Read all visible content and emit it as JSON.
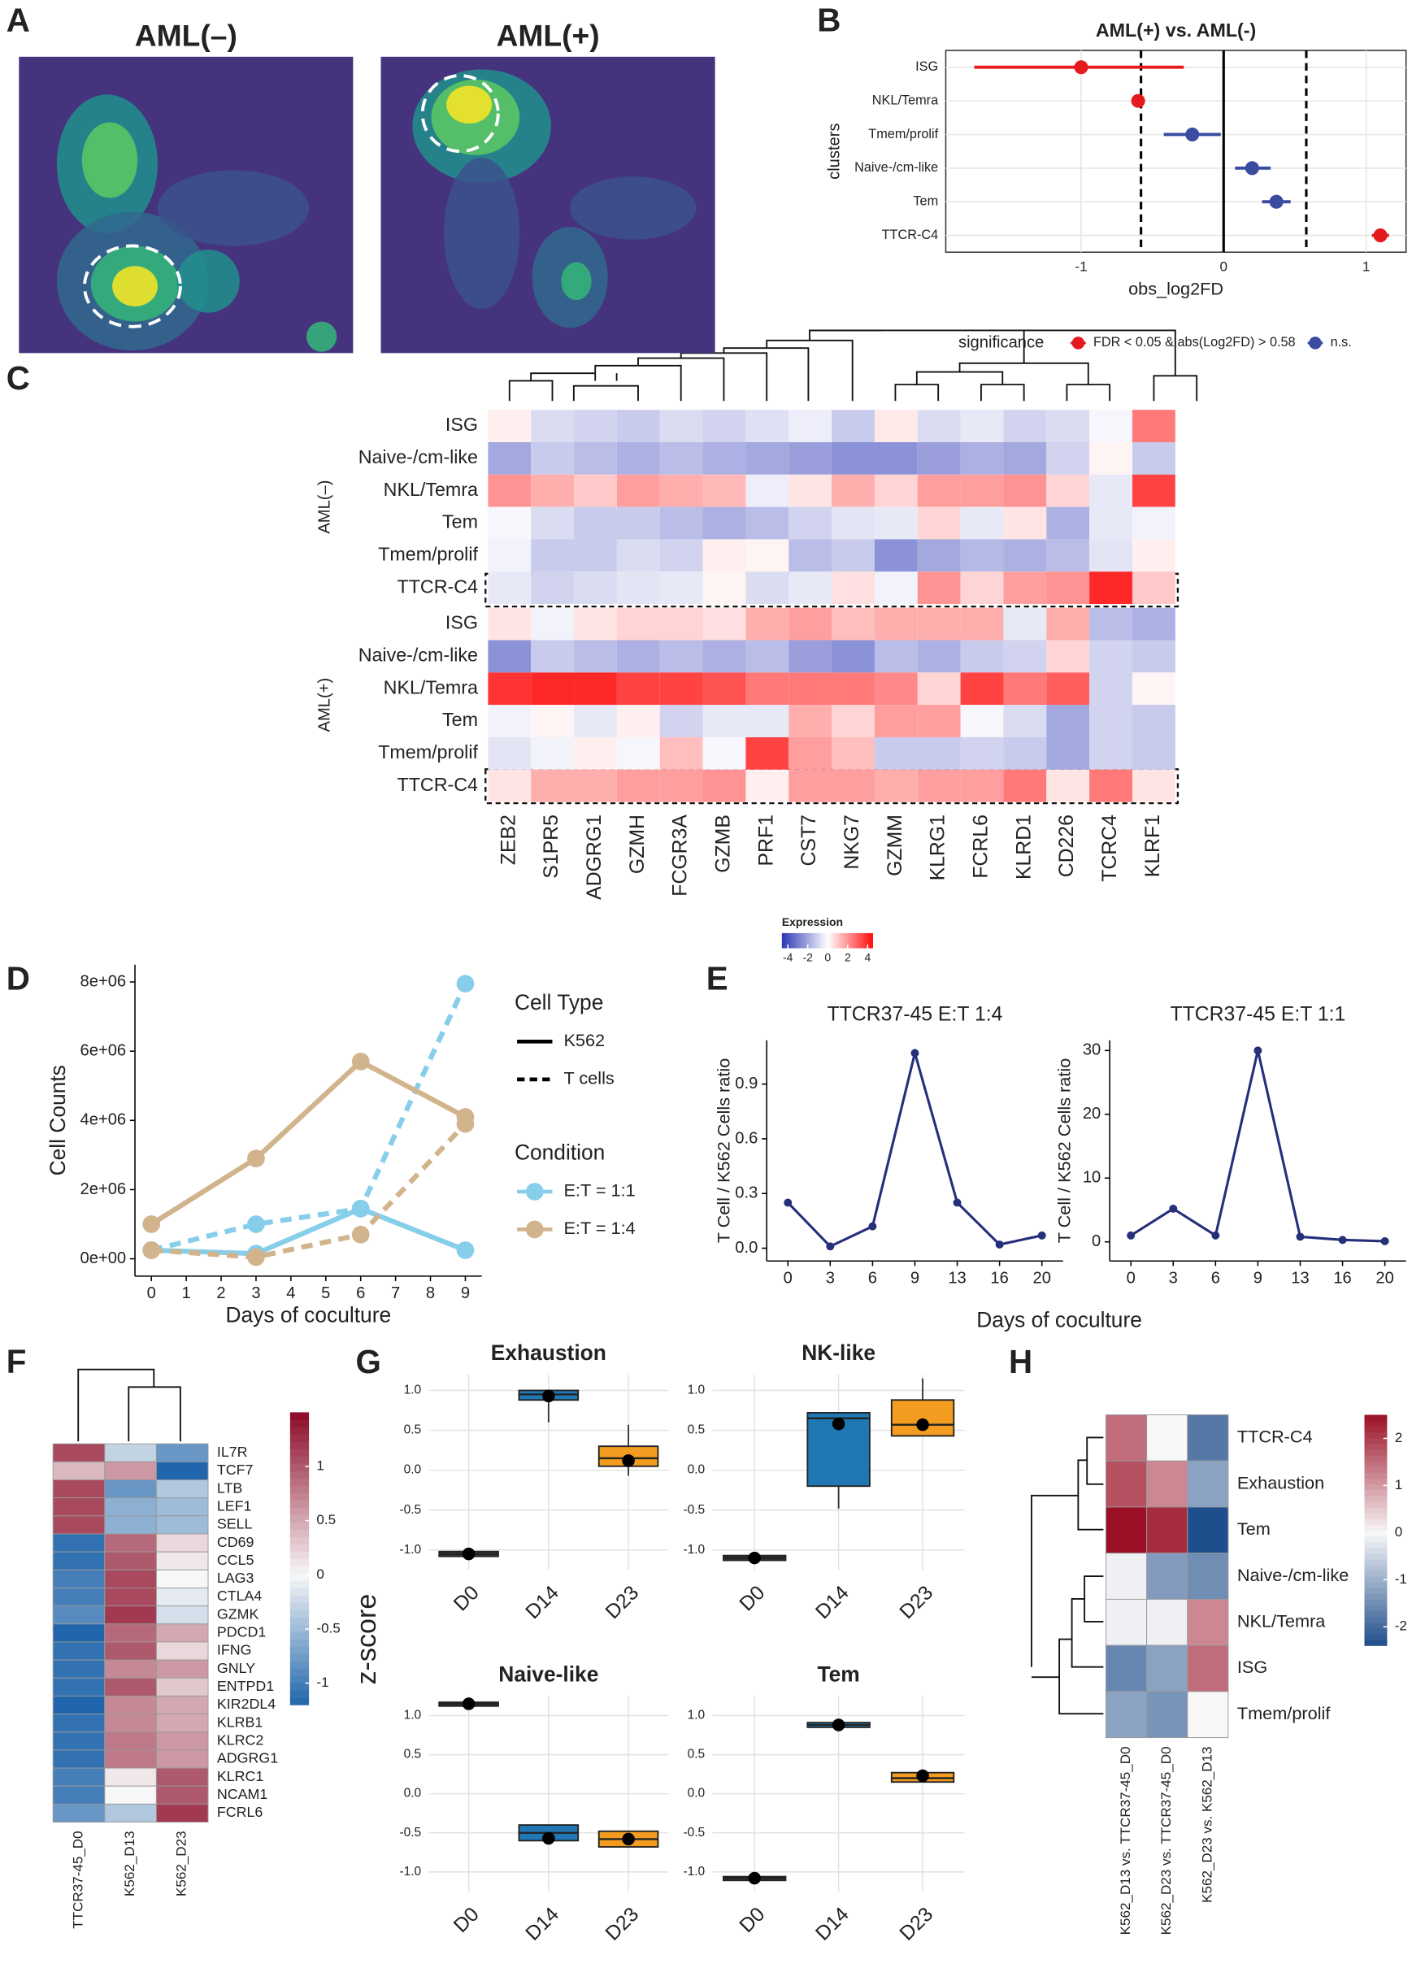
{
  "panel_labels": [
    "A",
    "B",
    "C",
    "D",
    "E",
    "F",
    "G",
    "H"
  ],
  "chart_data": [
    {
      "type": "density",
      "title": "AML(–)"
    },
    {
      "type": "density",
      "title": "AML(+)"
    },
    {
      "type": "forest",
      "title": "AML(+) vs. AML(-)",
      "xlabel": "obs_log2FD",
      "ylabel": "clusters",
      "categories": [
        "ISG",
        "NKL/Temra",
        "Tmem/prolif",
        "Naive-/cm-like",
        "Tem",
        "TTCR-C4"
      ],
      "values": [
        -1.0,
        -0.6,
        -0.22,
        0.2,
        0.37,
        1.1
      ],
      "lower": [
        -1.75,
        -0.63,
        -0.42,
        0.08,
        0.27,
        1.04
      ],
      "upper": [
        -0.28,
        -0.57,
        -0.02,
        0.33,
        0.47,
        1.16
      ],
      "groups": [
        0,
        0,
        1,
        1,
        1,
        0
      ],
      "legend_title": "significance",
      "legend": [
        {
          "name": "FDR < 0.05 & abs(Log2FD) > 0.58",
          "color": "#e41a1c"
        },
        {
          "name": "n.s.",
          "color": "#3a4ba0"
        }
      ],
      "thresholds": [
        -0.58,
        0.58
      ],
      "xlim": [
        -1.95,
        1.28
      ],
      "xticks": [
        -1,
        0,
        1
      ],
      "grid": true
    },
    {
      "type": "heatmap",
      "columns": [
        "ZEB2",
        "S1PR5",
        "ADGRG1",
        "GZMH",
        "FCGR3A",
        "GZMB",
        "PRF1",
        "CST7",
        "NKG7",
        "GZMM",
        "KLRG1",
        "FCRL6",
        "KLRD1",
        "CD226",
        "TCRC4",
        "KLRF1"
      ],
      "row_groups": [
        {
          "name": "AML(–)",
          "rows": [
            "ISG",
            "Naive-/cm-like",
            "NKL/Temra",
            "Tem",
            "Tmem/prolif",
            "TTCR-C4"
          ],
          "values": [
            [
              0.3,
              -0.8,
              -1,
              -1.2,
              -0.8,
              -1,
              -0.7,
              -0.4,
              -1.2,
              0.4,
              -0.8,
              -0.5,
              -1,
              -0.8,
              -0.2,
              2.5
            ],
            [
              -2,
              -1.2,
              -1.5,
              -1.8,
              -1.5,
              -1.8,
              -2,
              -2.2,
              -2.5,
              -2.5,
              -2.2,
              -1.8,
              -2,
              -1,
              0.2,
              -1.2
            ],
            [
              2,
              1.5,
              1,
              1.8,
              1.5,
              1.3,
              -0.4,
              0.5,
              1.5,
              0.8,
              1.8,
              1.8,
              2,
              0.8,
              -0.5,
              3.5
            ],
            [
              -0.2,
              -0.8,
              -1.2,
              -1.2,
              -1.5,
              -1.8,
              -1.5,
              -1,
              -0.6,
              -0.5,
              0.8,
              -0.5,
              0.5,
              -1.8,
              -0.5,
              -0.3
            ],
            [
              -0.3,
              -1.2,
              -1.2,
              -0.8,
              -1,
              0.3,
              0.2,
              -1.5,
              -1.2,
              -2.5,
              -2,
              -1.6,
              -1.8,
              -1.5,
              -0.6,
              0.3
            ],
            [
              -0.5,
              -1,
              -0.8,
              -0.6,
              -0.5,
              0.2,
              -0.8,
              -0.5,
              0.6,
              -0.3,
              2,
              0.8,
              1.8,
              2,
              4,
              1
            ]
          ]
        },
        {
          "name": "AML(+)",
          "rows": [
            "ISG",
            "Naive-/cm-like",
            "NKL/Temra",
            "Tem",
            "Tmem/prolif",
            "TTCR-C4"
          ],
          "values": [
            [
              0.5,
              -0.3,
              0.5,
              0.8,
              0.8,
              0.6,
              1.5,
              1.8,
              1.2,
              1.5,
              1.5,
              1.5,
              -0.5,
              1.5,
              -1.5,
              -1.8
            ],
            [
              -2.5,
              -1.2,
              -1.5,
              -1.8,
              -1.5,
              -1.8,
              -1.5,
              -2.2,
              -2.5,
              -1.5,
              -1.8,
              -1.2,
              -1,
              0.8,
              -1,
              -1.2
            ],
            [
              3.8,
              4,
              4,
              3.5,
              3.5,
              3.2,
              2.5,
              2.5,
              2.5,
              2.2,
              0.8,
              3.5,
              2.5,
              3,
              -1,
              0.2
            ],
            [
              -0.3,
              0.2,
              -0.5,
              0.3,
              -1,
              -0.5,
              -0.5,
              1.5,
              0.8,
              1.8,
              1.8,
              -0.2,
              -0.8,
              -2,
              -1,
              -1.2
            ],
            [
              -0.6,
              -0.3,
              0.3,
              -0.2,
              1.2,
              -0.2,
              3.5,
              1.8,
              1.2,
              -1.2,
              -1.2,
              -1,
              -1.2,
              -2,
              -1,
              -1.2
            ],
            [
              0.5,
              1.5,
              1.5,
              1.8,
              1.8,
              2,
              0.3,
              1.8,
              1.8,
              1.5,
              1.8,
              1.8,
              2.5,
              0.5,
              2.5,
              0.5
            ]
          ]
        }
      ],
      "colorbar_title": "Expression",
      "colors": [
        "#2b36b5",
        "#ffffff",
        "#ff0d0d"
      ],
      "clim": [
        -4.6,
        4.5
      ],
      "colorbar_ticks": [
        -4,
        -2,
        0,
        2,
        4
      ]
    },
    {
      "type": "line",
      "xlabel": "Days of coculture",
      "ylabel": "Cell Counts",
      "x": [
        0,
        3,
        6,
        9
      ],
      "xlim": [
        -0.47,
        9.47
      ],
      "xticks": [
        0,
        1,
        2,
        3,
        4,
        5,
        6,
        7,
        8,
        9
      ],
      "ylim": [
        -500000,
        8500000
      ],
      "yticks": [
        {
          "value": 0,
          "label": "0e+00"
        },
        {
          "value": 2000000,
          "label": "2e+06"
        },
        {
          "value": 4000000,
          "label": "4e+06"
        },
        {
          "value": 6000000,
          "label": "6e+06"
        },
        {
          "value": 8000000,
          "label": "8e+06"
        }
      ],
      "legend_linetype": {
        "title": "Cell Type",
        "items": [
          {
            "name": "K562",
            "dash": false
          },
          {
            "name": "T cells",
            "dash": true
          }
        ]
      },
      "legend_color": {
        "title": "Condition",
        "items": [
          {
            "name": "E:T = 1:1",
            "color": "#87ceeb"
          },
          {
            "name": "E:T = 1:4",
            "color": "#d2b48c"
          }
        ]
      },
      "series": [
        {
          "linetype": 0,
          "condition": 0,
          "values": [
            250000,
            150000,
            1450000,
            250000
          ]
        },
        {
          "linetype": 1,
          "condition": 0,
          "values": [
            250000,
            1000000,
            1450000,
            7950000
          ]
        },
        {
          "linetype": 0,
          "condition": 1,
          "values": [
            1000000,
            2900000,
            5700000,
            4100000
          ]
        },
        {
          "linetype": 1,
          "condition": 1,
          "values": [
            250000,
            50000,
            700000,
            3900000
          ]
        }
      ]
    },
    {
      "type": "line",
      "title": "TTCR37-45 E:T 1:4",
      "ylabel": "T Cell / K562 Cells ratio",
      "xlabel": "Days of coculture",
      "categories": [
        "0",
        "3",
        "6",
        "9",
        "13",
        "16",
        "20"
      ],
      "values": [
        0.25,
        0.01,
        0.12,
        1.07,
        0.25,
        0.02,
        0.07
      ],
      "color": "#252f7a",
      "ylim": [
        -0.07,
        1.14
      ],
      "yticks": [
        {
          "value": 0,
          "label": "0.0"
        },
        0.3,
        0.6,
        0.9
      ]
    },
    {
      "type": "line",
      "title": "TTCR37-45 E:T 1:1",
      "ylabel": "T Cell / K562 Cells ratio",
      "categories": [
        "0",
        "3",
        "6",
        "9",
        "13",
        "16",
        "20"
      ],
      "values": [
        1,
        5.2,
        1,
        30,
        0.8,
        0.3,
        0.1
      ],
      "color": "#252f7a",
      "ylim": [
        -3,
        31.6
      ],
      "yticks": [
        0,
        10,
        20,
        30
      ]
    },
    {
      "type": "heatmap",
      "columns": [
        "TTCR37-45_D0",
        "K562_D13",
        "K562_D23"
      ],
      "rows": [
        "IL7R",
        "TCF7",
        "LTB",
        "LEF1",
        "SELL",
        "CD69",
        "CCL5",
        "LAG3",
        "CTLA4",
        "GZMK",
        "PDCD1",
        "IFNG",
        "GNLY",
        "ENTPD1",
        "KIR2DL4",
        "KLRB1",
        "KLRC2",
        "ADGRG1",
        "KLRC1",
        "NCAM1",
        "FCRL6"
      ],
      "values": [
        [
          1.1,
          -0.3,
          -0.8
        ],
        [
          0.4,
          0.6,
          -1.2
        ],
        [
          1.1,
          -0.8,
          -0.4
        ],
        [
          1.1,
          -0.6,
          -0.5
        ],
        [
          1.1,
          -0.6,
          -0.5
        ],
        [
          -1.1,
          0.9,
          0.2
        ],
        [
          -1.1,
          1.0,
          0.1
        ],
        [
          -1.0,
          1.1,
          0.0
        ],
        [
          -1.0,
          1.1,
          -0.1
        ],
        [
          -0.9,
          1.2,
          -0.2
        ],
        [
          -1.2,
          0.9,
          0.5
        ],
        [
          -1.1,
          1.0,
          0.2
        ],
        [
          -1.1,
          0.7,
          0.6
        ],
        [
          -1.1,
          1.0,
          0.3
        ],
        [
          -1.2,
          0.7,
          0.5
        ],
        [
          -1.1,
          0.7,
          0.5
        ],
        [
          -1.1,
          0.8,
          0.6
        ],
        [
          -1.1,
          0.8,
          0.6
        ],
        [
          -1.0,
          0.1,
          1.0
        ],
        [
          -1.0,
          0.0,
          1.0
        ],
        [
          -0.8,
          -0.4,
          1.2
        ]
      ],
      "colors": [
        "#2166ac",
        "#f7f7f7",
        "#8b0a26"
      ],
      "clim": [
        -1.2,
        1.5
      ],
      "colorbar_ticks": [
        -1,
        -0.5,
        0,
        0.5,
        1
      ]
    },
    {
      "type": "box",
      "title": "Exhaustion",
      "ylabel": "z-score",
      "categories": [
        "D0",
        "D14",
        "D23"
      ],
      "colors": [
        "#3a3a3a",
        "#1f78b4",
        "#f39c1f"
      ],
      "ylim": [
        -1.25,
        1.2
      ],
      "yticks": [
        {
          "value": -1,
          "label": "-1.0"
        },
        -0.5,
        {
          "value": 0,
          "label": "0.0"
        },
        0.5,
        {
          "value": 1,
          "label": "1.0"
        }
      ],
      "boxes": [
        {
          "min": -1.08,
          "q1": -1.08,
          "median": -1.05,
          "q3": -1.02,
          "max": -1.02,
          "mean": -1.05
        },
        {
          "min": 0.6,
          "q1": 0.88,
          "median": 0.95,
          "q3": 1.0,
          "max": 1.0,
          "mean": 0.93
        },
        {
          "min": -0.07,
          "q1": 0.05,
          "median": 0.15,
          "q3": 0.3,
          "max": 0.57,
          "mean": 0.12
        }
      ]
    },
    {
      "type": "box",
      "title": "NK-like",
      "categories": [
        "D0",
        "D14",
        "D23"
      ],
      "colors": [
        "#3a3a3a",
        "#1f78b4",
        "#f39c1f"
      ],
      "ylim": [
        -1.25,
        1.2
      ],
      "yticks": [
        {
          "value": -1,
          "label": "-1.0"
        },
        -0.5,
        {
          "value": 0,
          "label": "0.0"
        },
        0.5,
        {
          "value": 1,
          "label": "1.0"
        }
      ],
      "boxes": [
        {
          "min": -1.13,
          "q1": -1.13,
          "median": -1.1,
          "q3": -1.07,
          "max": -1.07,
          "mean": -1.1
        },
        {
          "min": -0.48,
          "q1": -0.2,
          "median": 0.65,
          "q3": 0.72,
          "max": 0.73,
          "mean": 0.58
        },
        {
          "min": 0.43,
          "q1": 0.43,
          "median": 0.57,
          "q3": 0.88,
          "max": 1.15,
          "mean": 0.57
        }
      ]
    },
    {
      "type": "box",
      "title": "Naive-like",
      "categories": [
        "D0",
        "D14",
        "D23"
      ],
      "colors": [
        "#3a3a3a",
        "#1f78b4",
        "#f39c1f"
      ],
      "ylim": [
        -1.25,
        1.25
      ],
      "yticks": [
        {
          "value": -1,
          "label": "-1.0"
        },
        -0.5,
        {
          "value": 0,
          "label": "0.0"
        },
        0.5,
        {
          "value": 1,
          "label": "1.0"
        }
      ],
      "boxes": [
        {
          "min": 1.13,
          "q1": 1.13,
          "median": 1.15,
          "q3": 1.17,
          "max": 1.17,
          "mean": 1.15
        },
        {
          "min": -0.6,
          "q1": -0.6,
          "median": -0.5,
          "q3": -0.4,
          "max": -0.4,
          "mean": -0.57
        },
        {
          "min": -0.68,
          "q1": -0.68,
          "median": -0.58,
          "q3": -0.48,
          "max": -0.48,
          "mean": -0.58
        }
      ]
    },
    {
      "type": "box",
      "title": "Tem",
      "categories": [
        "D0",
        "D14",
        "D23"
      ],
      "colors": [
        "#3a3a3a",
        "#1f78b4",
        "#f39c1f"
      ],
      "ylim": [
        -1.25,
        1.25
      ],
      "yticks": [
        {
          "value": -1,
          "label": "-1.0"
        },
        -0.5,
        {
          "value": 0,
          "label": "0.0"
        },
        0.5,
        {
          "value": 1,
          "label": "1.0"
        }
      ],
      "boxes": [
        {
          "min": -1.1,
          "q1": -1.1,
          "median": -1.08,
          "q3": -1.06,
          "max": -1.06,
          "mean": -1.08
        },
        {
          "min": 0.85,
          "q1": 0.85,
          "median": 0.88,
          "q3": 0.91,
          "max": 0.91,
          "mean": 0.88
        },
        {
          "min": 0.15,
          "q1": 0.15,
          "median": 0.2,
          "q3": 0.27,
          "max": 0.27,
          "mean": 0.23
        }
      ]
    },
    {
      "type": "heatmap",
      "columns": [
        "K562_D13 vs. TTCR37-45_D0",
        "K562_D23 vs. TTCR37-45_D0",
        "K562_D23 vs. K562_D13"
      ],
      "rows": [
        "TTCR-C4",
        "Exhaustion",
        "Tem",
        "Naive-/cm-like",
        "NKL/Temra",
        "ISG",
        "Tmem/prolif"
      ],
      "values": [
        [
          1.5,
          0,
          -1.8
        ],
        [
          1.8,
          1.2,
          -1.2
        ],
        [
          2.5,
          2.2,
          -2.5
        ],
        [
          -0.1,
          -1.3,
          -1.5
        ],
        [
          -0.1,
          -0.1,
          1.2
        ],
        [
          -1.6,
          -1.2,
          1.5
        ],
        [
          -1.2,
          -1.4,
          0
        ]
      ],
      "colors": [
        "#1f4e8c",
        "#f7f7f7",
        "#9b1026"
      ],
      "clim": [
        -2.4,
        2.5
      ],
      "colorbar_ticks": [
        -2,
        -1,
        0,
        1,
        2
      ]
    }
  ]
}
